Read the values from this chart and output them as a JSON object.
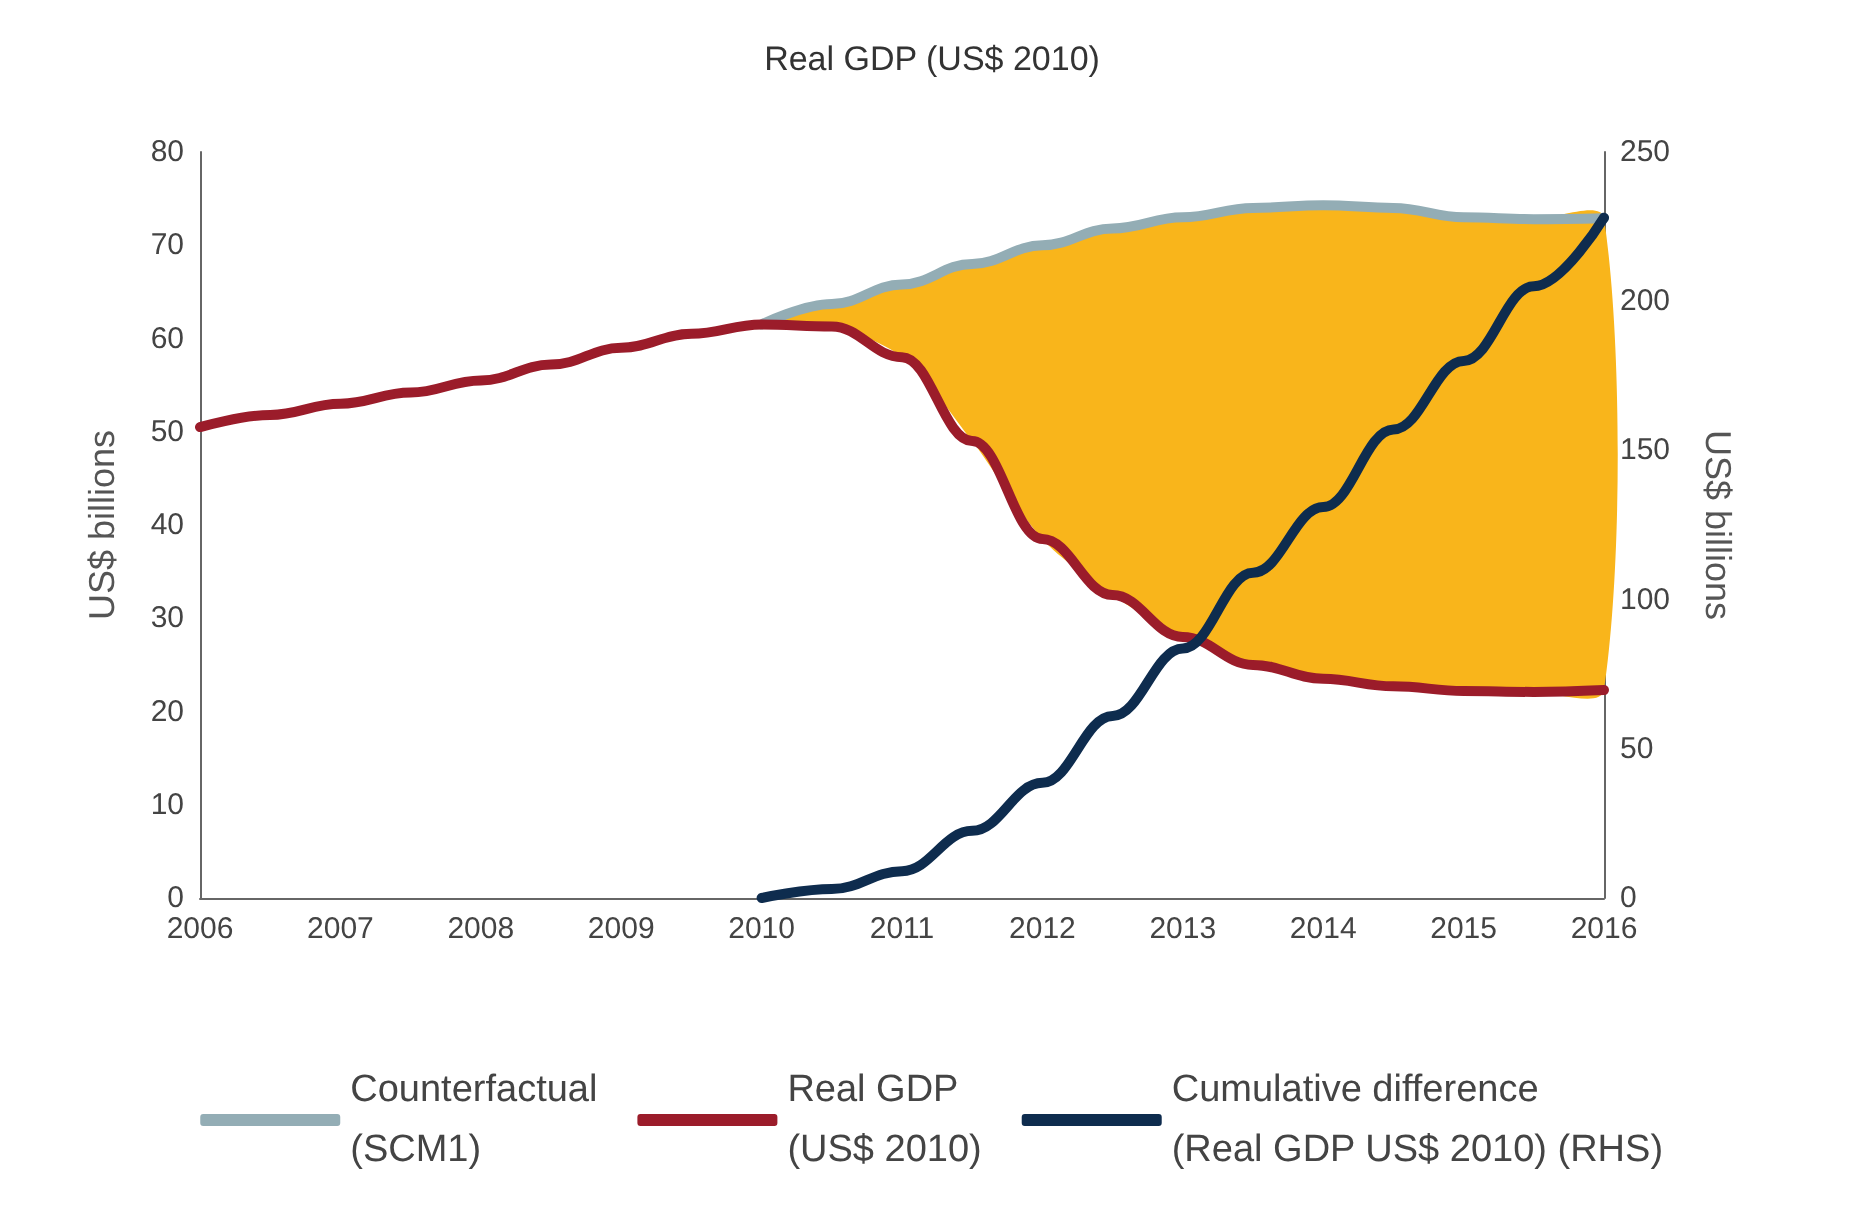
{
  "chart_data": {
    "type": "line",
    "title": "Real GDP (US$ 2010)",
    "ylabel": "US$ billions",
    "y2label": "US$ billions",
    "xlim": [
      2006,
      2016
    ],
    "xticks": [
      {
        "value": 2006,
        "label": "2006"
      },
      {
        "value": 2007,
        "label": "2007"
      },
      {
        "value": 2008,
        "label": "2008"
      },
      {
        "value": 2009,
        "label": "2009"
      },
      {
        "value": 2010,
        "label": "2010"
      },
      {
        "value": 2011,
        "label": "2011"
      },
      {
        "value": 2012,
        "label": "2012"
      },
      {
        "value": 2013,
        "label": "2013"
      },
      {
        "value": 2014,
        "label": "2014"
      },
      {
        "value": 2015,
        "label": "2015"
      },
      {
        "value": 2016,
        "label": "2016"
      }
    ],
    "ylim": [
      0,
      80
    ],
    "yticks": [
      0,
      10,
      20,
      30,
      40,
      50,
      60,
      70,
      80
    ],
    "y2lim": [
      0,
      250
    ],
    "y2ticks": [
      0,
      50,
      100,
      150,
      200,
      250
    ],
    "grid": false,
    "legend": "bottom",
    "marker": "none",
    "line_style": "solid",
    "series": [
      {
        "name": "Counterfactual (SCM1)",
        "color": "#93adb5",
        "x": [
          2010,
          2010.5,
          2011,
          2011.5,
          2012,
          2012.5,
          2013,
          2013.5,
          2014,
          2014.5,
          2015,
          2015.5,
          2016
        ],
        "values": [
          61.5,
          63.7,
          65.8,
          68,
          70,
          71.8,
          73,
          74,
          74.3,
          74,
          73,
          72.8,
          72.9
        ],
        "upper": [
          61.5,
          63.7,
          65.8,
          68,
          70,
          71.8,
          73,
          74,
          74.3,
          74,
          73,
          72.8,
          72.9
        ],
        "lower": [
          61.5,
          61.3,
          58,
          49,
          38.5,
          32.5,
          28,
          25,
          23.5,
          22.7,
          22.2,
          22.1,
          22.3
        ]
      },
      {
        "name": "Real GDP (US$ 2010)",
        "color": "#9b1c2a",
        "x": [
          2006,
          2006.5,
          2007,
          2007.5,
          2008,
          2008.5,
          2009,
          2009.5,
          2010,
          2010.5,
          2011,
          2011.5,
          2012,
          2012.5,
          2013,
          2013.5,
          2014,
          2014.5,
          2015,
          2015.5,
          2016
        ],
        "values": [
          50.5,
          51.8,
          53,
          54.2,
          55.5,
          57.2,
          59,
          60.5,
          61.5,
          61.3,
          58,
          49,
          38.5,
          32.5,
          28,
          25,
          23.5,
          22.7,
          22.2,
          22.1,
          22.3
        ]
      },
      {
        "name": "Cumulative difference (Real GDP US$ 2010) (RHS)",
        "color": "#0e2c4e",
        "axis": "y2",
        "x": [
          2010,
          2010.5,
          2011,
          2011.5,
          2012,
          2012.5,
          2013,
          2013.5,
          2014,
          2014.5,
          2015,
          2015.5,
          2016
        ],
        "values": [
          0,
          3,
          9,
          22.5,
          38.6,
          61,
          83.6,
          109,
          131,
          157,
          180,
          205,
          228
        ]
      }
    ]
  }
}
